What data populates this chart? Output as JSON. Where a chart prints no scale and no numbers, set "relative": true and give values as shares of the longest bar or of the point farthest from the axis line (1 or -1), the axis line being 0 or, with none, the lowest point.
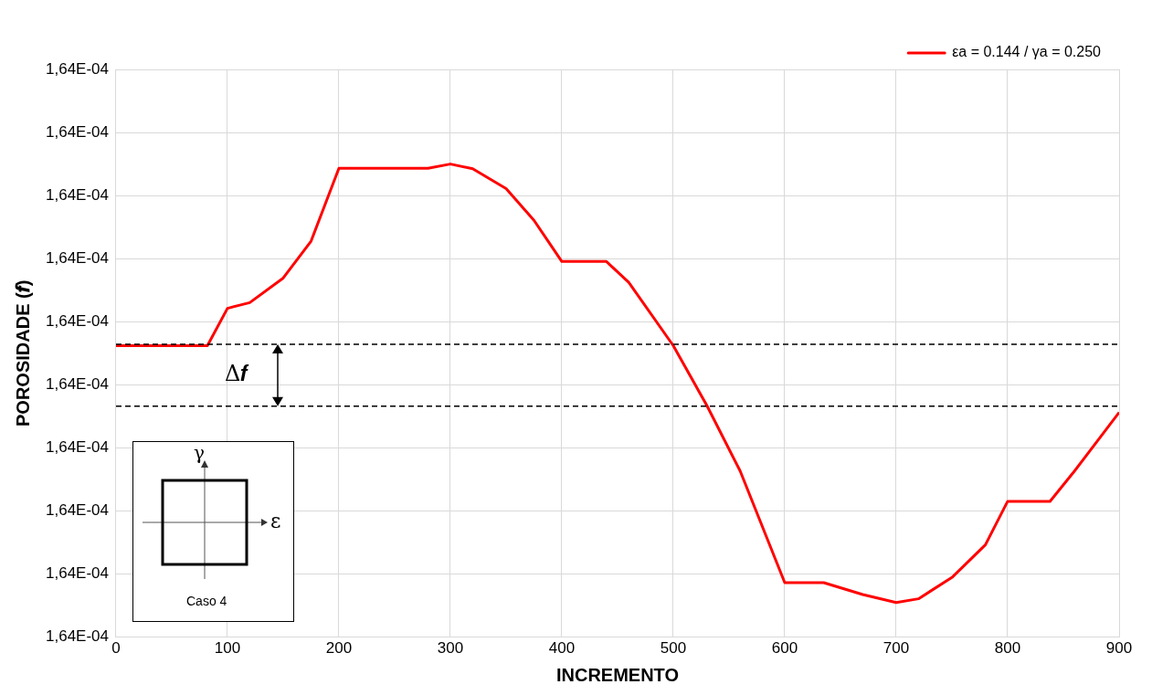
{
  "chart_data": {
    "type": "line",
    "xlabel": "INCREMENTO",
    "ylabel": "POROSIDADE (𝒇)",
    "xlim": [
      0,
      900
    ],
    "xticks": [
      0,
      100,
      200,
      300,
      400,
      500,
      600,
      700,
      800,
      900
    ],
    "relative": true,
    "grid": true,
    "legend": "top right",
    "marker": "none",
    "line_style": "solid",
    "series": [
      {
        "name": "εa = 0.144 / γa = 0.250",
        "color": "#ff0000",
        "x": [
          0,
          82,
          100,
          120,
          150,
          175,
          200,
          280,
          300,
          320,
          350,
          375,
          400,
          440,
          460,
          500,
          530,
          560,
          600,
          635,
          670,
          700,
          720,
          750,
          780,
          800,
          838,
          860,
          900
        ],
        "values": [
          0.616,
          0.616,
          0.695,
          0.707,
          0.759,
          0.837,
          0.991,
          0.991,
          1,
          0.99,
          0.948,
          0.881,
          0.794,
          0.794,
          0.75,
          0.616,
          0.49,
          0.351,
          0.115,
          0.115,
          0.09,
          0.073,
          0.081,
          0.126,
          0.195,
          0.287,
          0.287,
          0.351,
          0.475
        ]
      }
    ],
    "ref_lines": [
      {
        "axis": "y",
        "value": 0.619,
        "color": "#000000",
        "line_style": "dashed"
      },
      {
        "axis": "y",
        "value": 0.488,
        "color": "#000000",
        "line_style": "dashed"
      }
    ],
    "annotations": [
      "Δ𝒇",
      "γ",
      "ε",
      "Caso 4",
      "1,64E-04",
      "1,64E-04",
      "1,64E-04",
      "1,64E-04",
      "1,64E-04",
      "1,64E-04",
      "1,64E-04",
      "1,64E-04",
      "1,64E-04",
      "1,64E-04"
    ]
  }
}
